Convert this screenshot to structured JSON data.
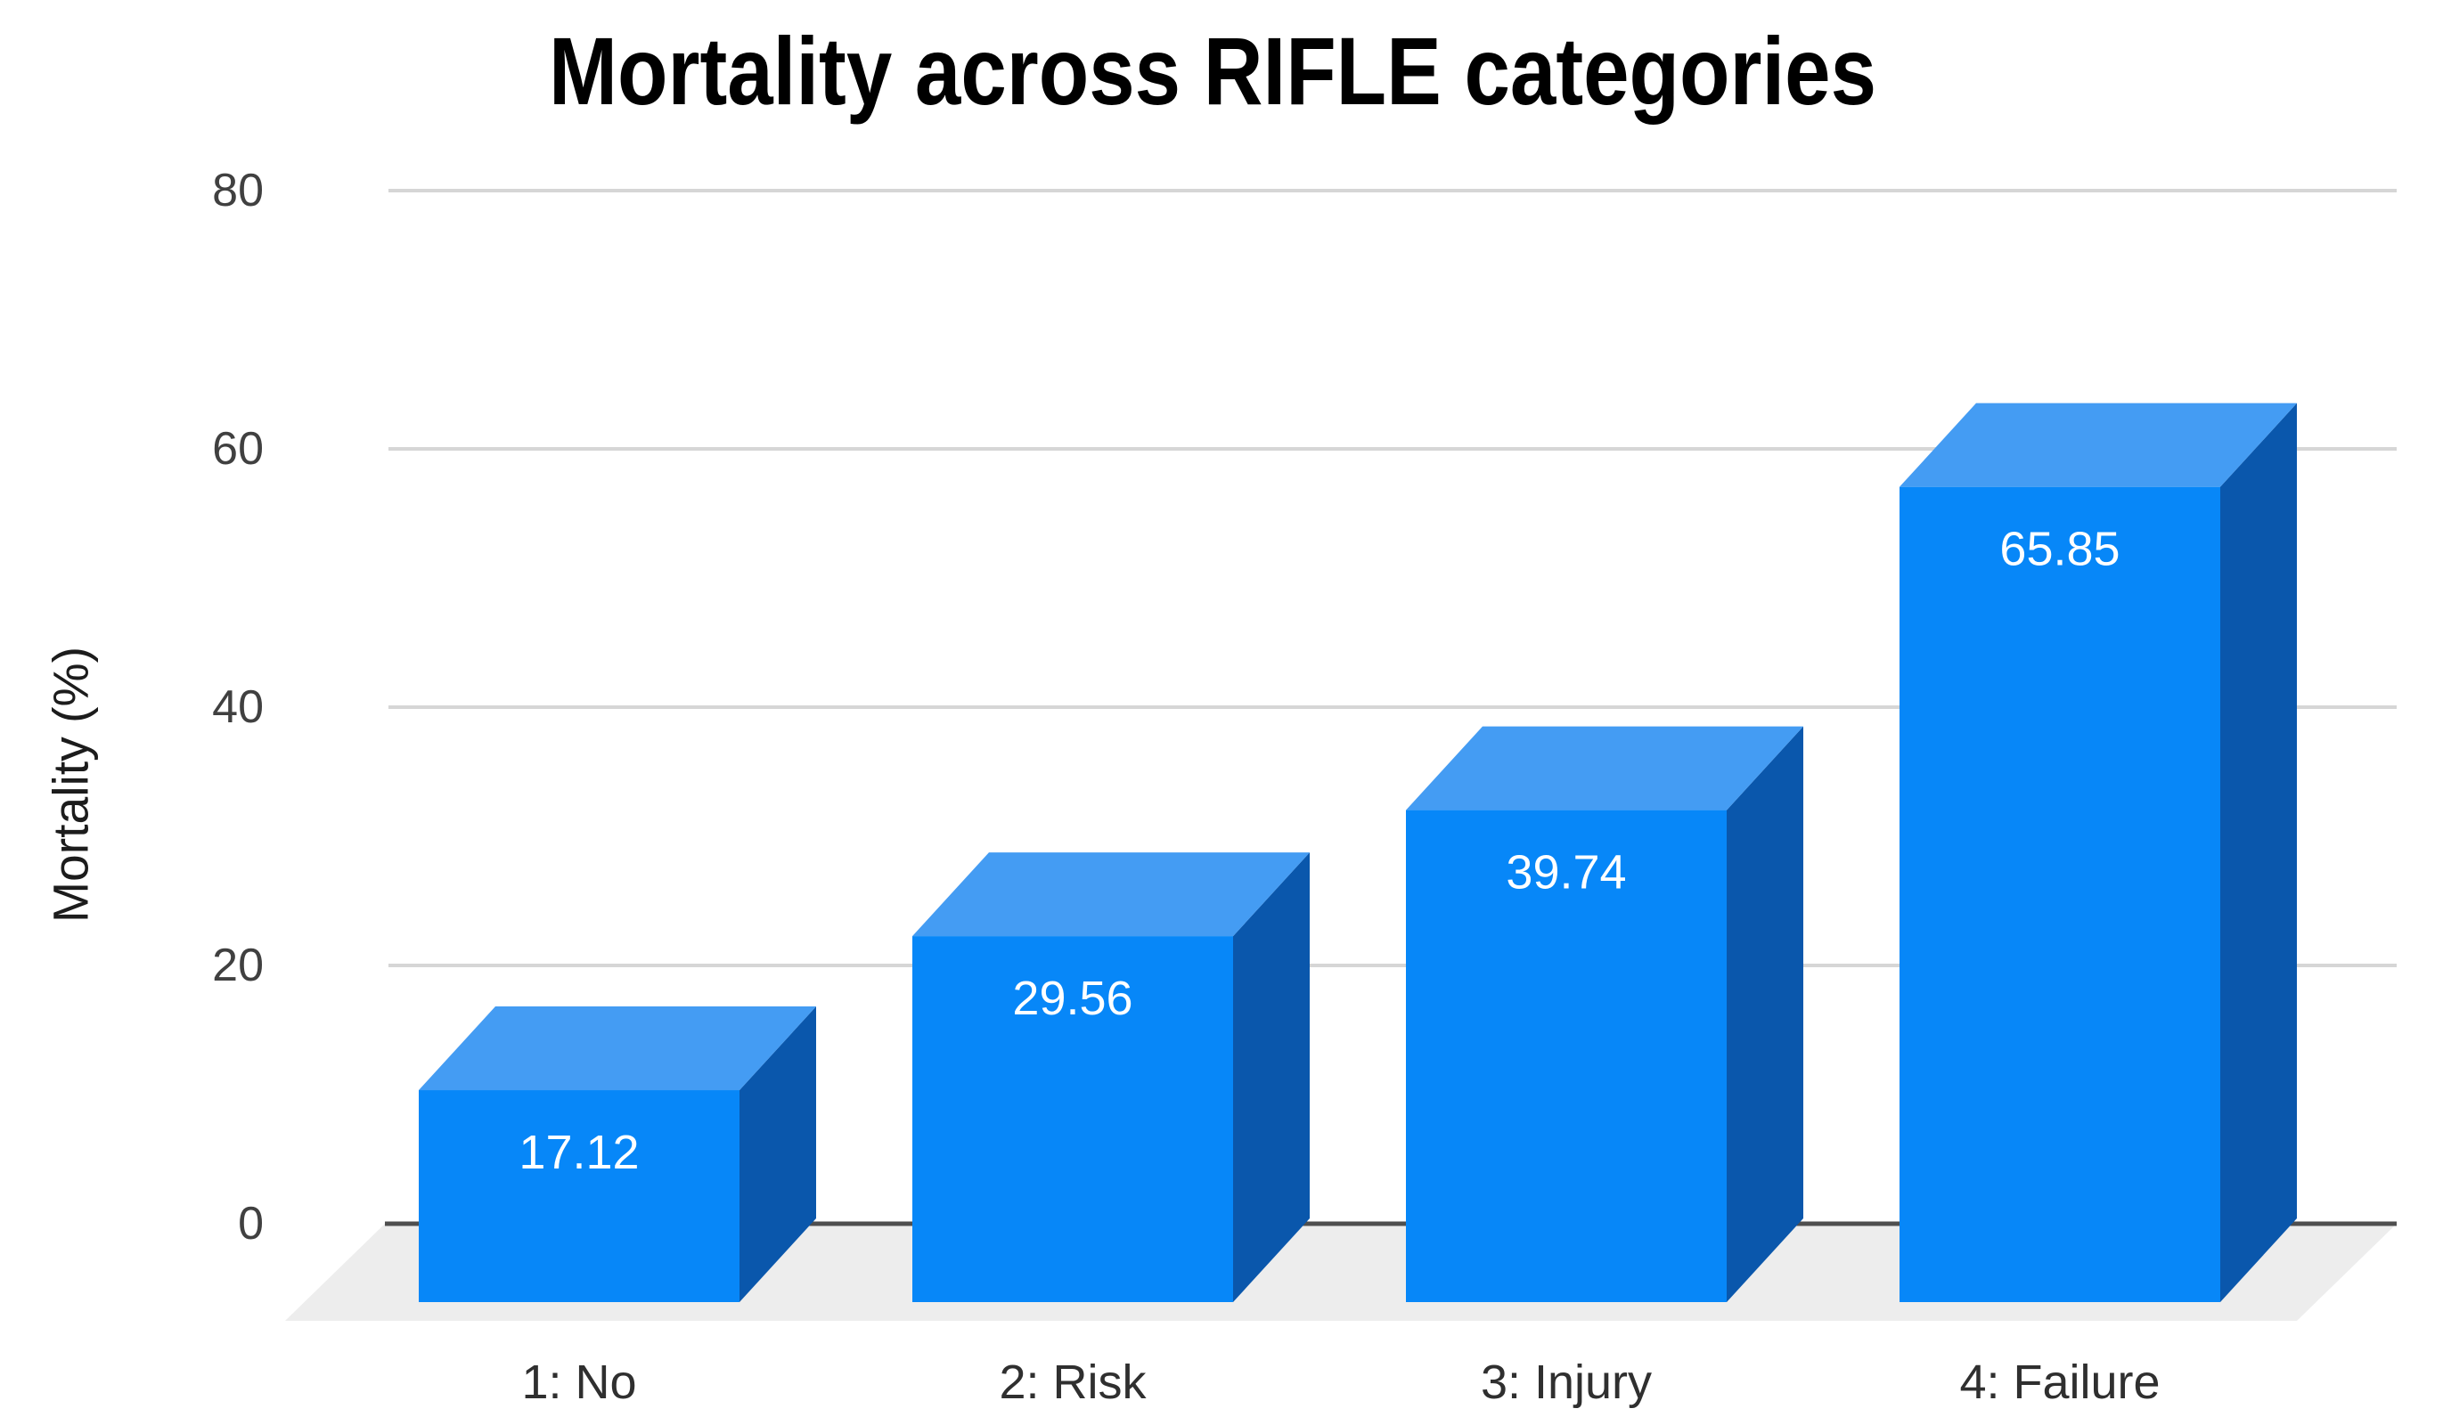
{
  "window": {
    "background": "#ffffff"
  },
  "chart_data": {
    "type": "bar",
    "variant": "3d-column",
    "title": "Mortality across RIFLE categories",
    "xlabel": "",
    "ylabel": "Mortality (%)",
    "categories": [
      "1: No",
      "2: Risk",
      "3: Injury",
      "4: Failure"
    ],
    "values": [
      17.12,
      29.56,
      39.74,
      65.85
    ],
    "value_labels": [
      "17.12",
      "29.56",
      "39.74",
      "65.85"
    ],
    "yticks": [
      0,
      20,
      40,
      60,
      80
    ],
    "ylim": [
      0,
      80
    ],
    "grid": true,
    "legend_position": "none",
    "colors": {
      "bar_front": "#0787f8",
      "bar_top": "#449cf3",
      "bar_side": "#0a57ac",
      "floor": "#ededed",
      "gridline": "#d6d6d6",
      "axis_line": "#4f4f4f",
      "title_text": "#000000",
      "tick_text": "#404040",
      "category_text": "#2f2f2f",
      "value_label_text": "#ffffff",
      "axis_title_text": "#1c1c1c"
    }
  }
}
